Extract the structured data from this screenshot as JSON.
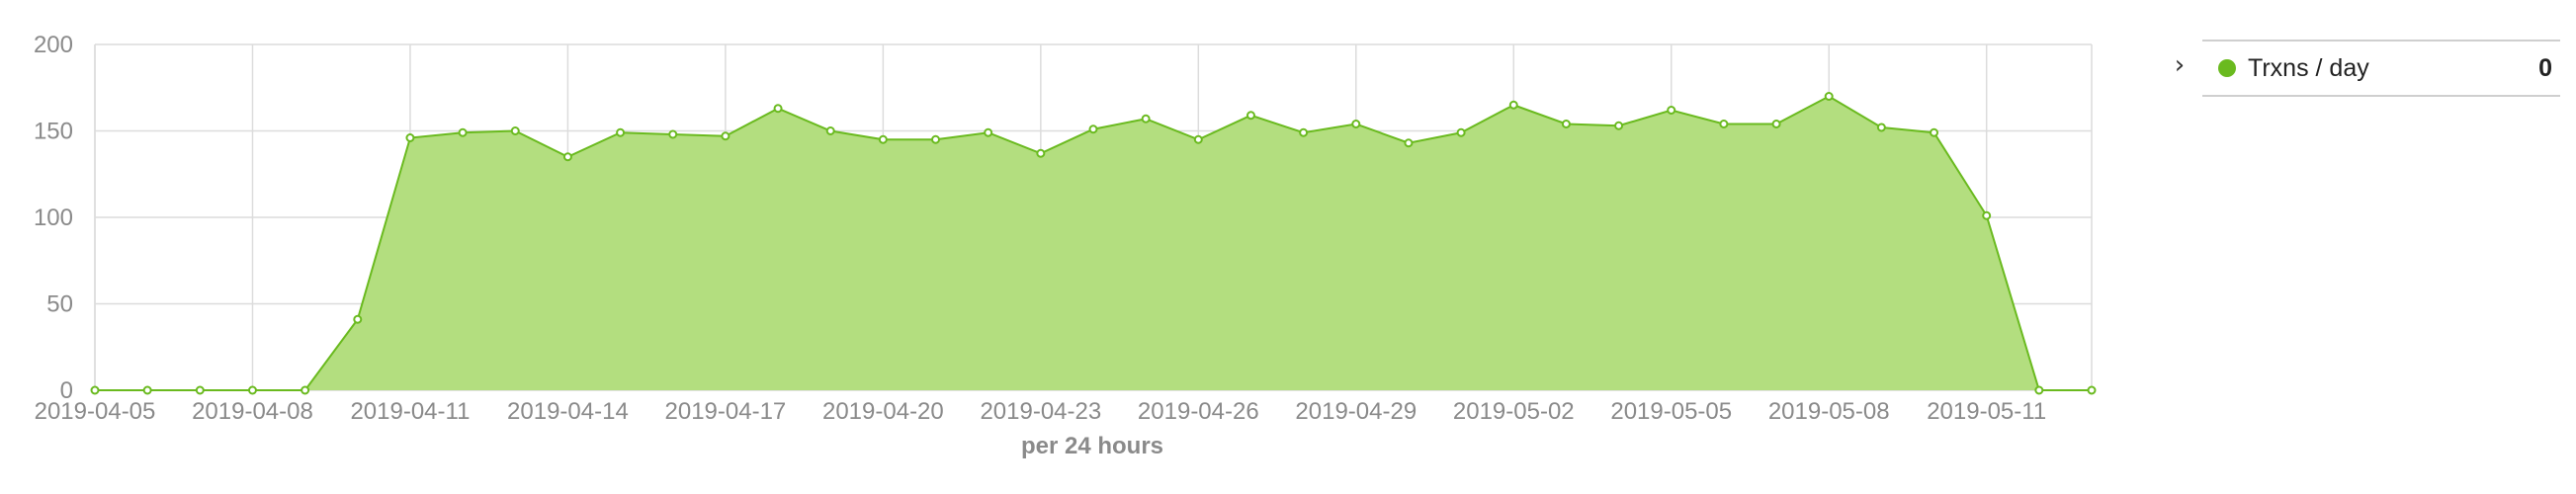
{
  "chart_data": {
    "type": "area",
    "title": "",
    "xlabel": "per 24 hours",
    "ylabel": "",
    "ylim": [
      0,
      200
    ],
    "y_ticks": [
      "0",
      "50",
      "100",
      "150",
      "200"
    ],
    "x_ticks": [
      "2019-04-05",
      "2019-04-08",
      "2019-04-11",
      "2019-04-14",
      "2019-04-17",
      "2019-04-20",
      "2019-04-23",
      "2019-04-26",
      "2019-04-29",
      "2019-05-02",
      "2019-05-05",
      "2019-05-08",
      "2019-05-11"
    ],
    "grid": true,
    "legend_position": "right",
    "colors": {
      "fill": "#b3de7f",
      "stroke": "#6aba1f",
      "point": "#6aba1f"
    },
    "x": [
      "2019-04-05",
      "2019-04-06",
      "2019-04-07",
      "2019-04-08",
      "2019-04-09",
      "2019-04-10",
      "2019-04-11",
      "2019-04-12",
      "2019-04-13",
      "2019-04-14",
      "2019-04-15",
      "2019-04-16",
      "2019-04-17",
      "2019-04-18",
      "2019-04-19",
      "2019-04-20",
      "2019-04-21",
      "2019-04-22",
      "2019-04-23",
      "2019-04-24",
      "2019-04-25",
      "2019-04-26",
      "2019-04-27",
      "2019-04-28",
      "2019-04-29",
      "2019-04-30",
      "2019-05-01",
      "2019-05-02",
      "2019-05-03",
      "2019-05-04",
      "2019-05-05",
      "2019-05-06",
      "2019-05-07",
      "2019-05-08",
      "2019-05-09",
      "2019-05-10",
      "2019-05-11",
      "2019-05-12",
      "2019-05-13"
    ],
    "series": [
      {
        "name": "Trxns / day",
        "values": [
          0,
          0,
          0,
          0,
          0,
          41,
          146,
          149,
          150,
          135,
          149,
          148,
          147,
          163,
          150,
          145,
          145,
          149,
          137,
          151,
          157,
          145,
          159,
          149,
          154,
          143,
          149,
          165,
          154,
          153,
          162,
          154,
          154,
          170,
          152,
          149,
          101,
          0,
          0
        ]
      }
    ]
  },
  "legend": {
    "toggle_icon": "chevron-right-icon",
    "toggle_glyph": "›",
    "items": [
      {
        "label": "Trxns / day",
        "value": "0",
        "color": "#6aba1f"
      }
    ]
  }
}
